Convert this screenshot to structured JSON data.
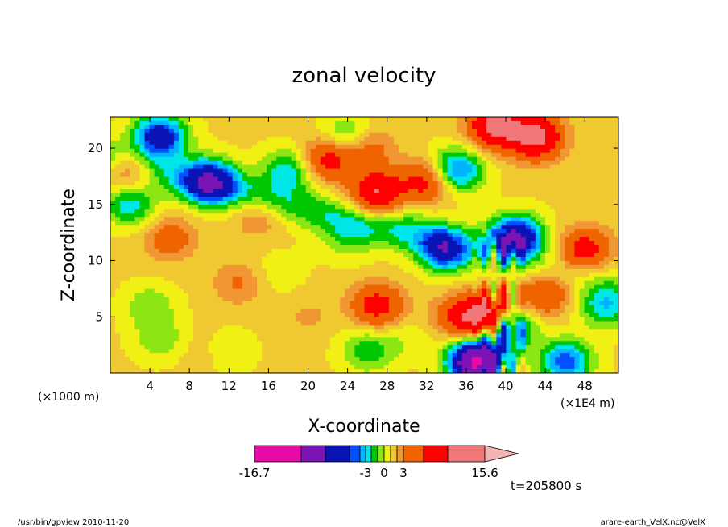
{
  "chart_data": {
    "type": "heatmap",
    "title": "zonal velocity",
    "xlabel": "X-coordinate",
    "ylabel": "Z-coordinate",
    "x_unit_note": "(×1000 m)",
    "x_scale_note": "(×1E4 m)",
    "xlim": [
      0,
      51.4
    ],
    "ylim": [
      0,
      22.8
    ],
    "x_ticks": [
      4,
      8,
      12,
      16,
      20,
      24,
      28,
      32,
      36,
      40,
      44,
      48
    ],
    "y_ticks": [
      5,
      10,
      15,
      20
    ],
    "colorbar": {
      "colors": [
        "#e60aa8",
        "#7a14b4",
        "#0a14b4",
        "#0050ff",
        "#00b4ff",
        "#00e6e6",
        "#00c800",
        "#8ce614",
        "#f0f014",
        "#f0c832",
        "#f09632",
        "#f06400",
        "#ff0000",
        "#f07878",
        "#f5b4b4"
      ],
      "labels": [
        "-16.7",
        "-3",
        "0",
        "3",
        "15.6"
      ],
      "extend": "max"
    },
    "time_label": "t=205800 s",
    "footer_left": "/usr/bin/gpview  2010-11-20",
    "footer_right": "arare-earth_VelX.nc@VelX",
    "features": [
      {
        "x": 38,
        "z": 5,
        "value": 10
      },
      {
        "x": 40,
        "z": 4,
        "value": -8
      },
      {
        "x": 37,
        "z": 1,
        "value": -14
      },
      {
        "x": 41,
        "z": 12,
        "value": -10
      },
      {
        "x": 34,
        "z": 11,
        "value": -7
      },
      {
        "x": 46,
        "z": 1,
        "value": -6
      },
      {
        "x": 44,
        "z": 7,
        "value": 4
      },
      {
        "x": 48,
        "z": 11,
        "value": 5
      },
      {
        "x": 50,
        "z": 6,
        "value": -4
      },
      {
        "x": 43,
        "z": 21,
        "value": 8
      },
      {
        "x": 39,
        "z": 22,
        "value": 8
      },
      {
        "x": 35,
        "z": 18,
        "value": -6
      },
      {
        "x": 32,
        "z": 17,
        "value": 5
      },
      {
        "x": 27,
        "z": 16,
        "value": 7
      },
      {
        "x": 26,
        "z": 20,
        "value": 3
      },
      {
        "x": 24,
        "z": 21,
        "value": -3
      },
      {
        "x": 22,
        "z": 19,
        "value": 5
      },
      {
        "x": 18,
        "z": 18,
        "value": -4
      },
      {
        "x": 10,
        "z": 17,
        "value": -8
      },
      {
        "x": 5,
        "z": 21,
        "value": -8
      },
      {
        "x": 2,
        "z": 18,
        "value": 4
      },
      {
        "x": 2,
        "z": 15,
        "value": -4
      },
      {
        "x": 6,
        "z": 12,
        "value": 3
      },
      {
        "x": 15,
        "z": 14,
        "value": 2
      },
      {
        "x": 13,
        "z": 8,
        "value": 2
      },
      {
        "x": 17,
        "z": 9,
        "value": -1
      },
      {
        "x": 4,
        "z": 6,
        "value": -2
      },
      {
        "x": 5,
        "z": 3,
        "value": -2
      },
      {
        "x": 12,
        "z": 2,
        "value": -1
      },
      {
        "x": 26,
        "z": 2,
        "value": -3
      },
      {
        "x": 20,
        "z": 5,
        "value": 1
      },
      {
        "x": 24,
        "z": 12,
        "value": -2
      },
      {
        "x": 30,
        "z": 14,
        "value": -1
      },
      {
        "x": 27,
        "z": 6,
        "value": 5
      },
      {
        "x": 30,
        "z": 3,
        "value": -1
      },
      {
        "x": 35,
        "z": 5,
        "value": 3
      },
      {
        "x": 9,
        "z": 2,
        "value": 0.5
      }
    ]
  }
}
